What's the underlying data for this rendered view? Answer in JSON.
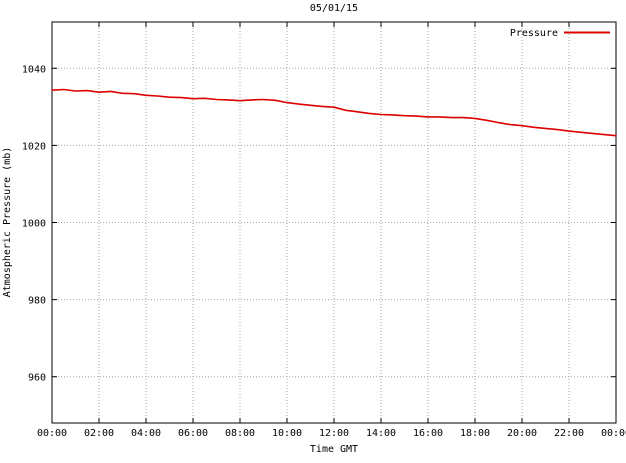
{
  "title": "05/01/15",
  "legend": {
    "label": "Pressure"
  },
  "colors": {
    "line": "#dd0000",
    "grid": "#a6a6a6",
    "axis": "#000000",
    "background": "#ffffff"
  },
  "chart_data": {
    "type": "line",
    "title": "05/01/15",
    "xlabel": "Time GMT",
    "ylabel": "Atmospheric Pressure (mb)",
    "xlim_hours": [
      0,
      24
    ],
    "ylim": [
      948,
      1052
    ],
    "grid": true,
    "legend_position": "top-right",
    "x_ticks": {
      "hours": [
        0,
        2,
        4,
        6,
        8,
        10,
        12,
        14,
        16,
        18,
        20,
        22,
        24
      ],
      "labels": [
        "00:00",
        "02:00",
        "04:00",
        "06:00",
        "08:00",
        "10:00",
        "12:00",
        "14:00",
        "16:00",
        "18:00",
        "20:00",
        "22:00",
        "00:00"
      ]
    },
    "y_ticks": [
      960,
      980,
      1000,
      1020,
      1040
    ],
    "series": [
      {
        "name": "Pressure",
        "color": "#dd0000",
        "x_hours": [
          0,
          0.5,
          1,
          1.5,
          2,
          2.5,
          3,
          3.5,
          4,
          4.5,
          5,
          5.5,
          6,
          6.5,
          7,
          7.5,
          8,
          8.5,
          9,
          9.5,
          10,
          10.5,
          11,
          11.5,
          12,
          12.5,
          13,
          13.5,
          14,
          14.5,
          15,
          15.5,
          16,
          16.5,
          17,
          17.5,
          18,
          18.5,
          19,
          19.5,
          20,
          20.5,
          21,
          21.5,
          22,
          22.5,
          23,
          23.5,
          24
        ],
        "values": [
          1034.3,
          1034.5,
          1034.1,
          1034.2,
          1033.8,
          1034.0,
          1033.5,
          1033.4,
          1033.0,
          1032.8,
          1032.5,
          1032.4,
          1032.1,
          1032.2,
          1031.9,
          1031.8,
          1031.6,
          1031.8,
          1031.9,
          1031.7,
          1031.1,
          1030.7,
          1030.4,
          1030.1,
          1029.9,
          1029.1,
          1028.7,
          1028.3,
          1028.0,
          1027.9,
          1027.7,
          1027.6,
          1027.4,
          1027.4,
          1027.2,
          1027.2,
          1027.0,
          1026.5,
          1025.9,
          1025.4,
          1025.1,
          1024.7,
          1024.4,
          1024.1,
          1023.7,
          1023.4,
          1023.1,
          1022.8,
          1022.5
        ]
      }
    ]
  }
}
